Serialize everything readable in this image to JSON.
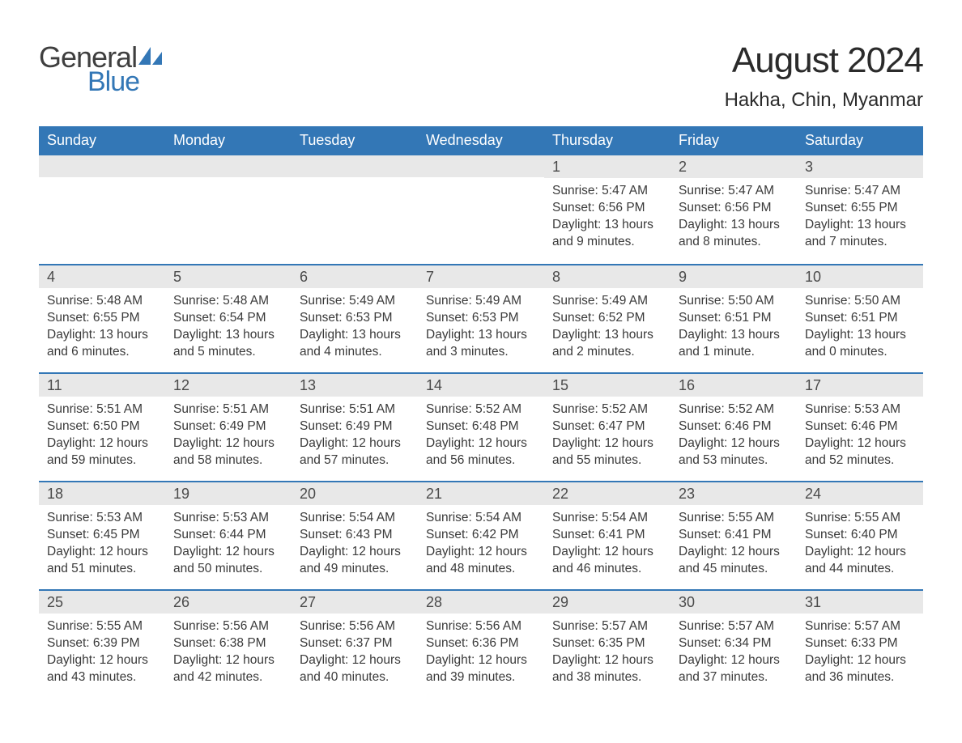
{
  "logo": {
    "text_general": "General",
    "text_blue": "Blue",
    "sail_color": "#3377b6",
    "text_general_color": "#3f3f3f",
    "text_blue_color": "#3377b6"
  },
  "header": {
    "month_title": "August 2024",
    "location": "Hakha, Chin, Myanmar"
  },
  "styling": {
    "header_bg": "#3377b6",
    "header_text": "#ffffff",
    "daynum_bg": "#e8e8e8",
    "week_border_color": "#3377b6",
    "body_text_color": "#3a3a3a",
    "page_bg": "#ffffff",
    "month_title_fontsize": 44,
    "location_fontsize": 24,
    "day_header_fontsize": 18,
    "daynum_fontsize": 18,
    "cell_fontsize": 15.5
  },
  "day_labels": [
    "Sunday",
    "Monday",
    "Tuesday",
    "Wednesday",
    "Thursday",
    "Friday",
    "Saturday"
  ],
  "weeks": [
    [
      {},
      {},
      {},
      {},
      {
        "day": "1",
        "sunrise": "Sunrise: 5:47 AM",
        "sunset": "Sunset: 6:56 PM",
        "daylight": "Daylight: 13 hours and 9 minutes."
      },
      {
        "day": "2",
        "sunrise": "Sunrise: 5:47 AM",
        "sunset": "Sunset: 6:56 PM",
        "daylight": "Daylight: 13 hours and 8 minutes."
      },
      {
        "day": "3",
        "sunrise": "Sunrise: 5:47 AM",
        "sunset": "Sunset: 6:55 PM",
        "daylight": "Daylight: 13 hours and 7 minutes."
      }
    ],
    [
      {
        "day": "4",
        "sunrise": "Sunrise: 5:48 AM",
        "sunset": "Sunset: 6:55 PM",
        "daylight": "Daylight: 13 hours and 6 minutes."
      },
      {
        "day": "5",
        "sunrise": "Sunrise: 5:48 AM",
        "sunset": "Sunset: 6:54 PM",
        "daylight": "Daylight: 13 hours and 5 minutes."
      },
      {
        "day": "6",
        "sunrise": "Sunrise: 5:49 AM",
        "sunset": "Sunset: 6:53 PM",
        "daylight": "Daylight: 13 hours and 4 minutes."
      },
      {
        "day": "7",
        "sunrise": "Sunrise: 5:49 AM",
        "sunset": "Sunset: 6:53 PM",
        "daylight": "Daylight: 13 hours and 3 minutes."
      },
      {
        "day": "8",
        "sunrise": "Sunrise: 5:49 AM",
        "sunset": "Sunset: 6:52 PM",
        "daylight": "Daylight: 13 hours and 2 minutes."
      },
      {
        "day": "9",
        "sunrise": "Sunrise: 5:50 AM",
        "sunset": "Sunset: 6:51 PM",
        "daylight": "Daylight: 13 hours and 1 minute."
      },
      {
        "day": "10",
        "sunrise": "Sunrise: 5:50 AM",
        "sunset": "Sunset: 6:51 PM",
        "daylight": "Daylight: 13 hours and 0 minutes."
      }
    ],
    [
      {
        "day": "11",
        "sunrise": "Sunrise: 5:51 AM",
        "sunset": "Sunset: 6:50 PM",
        "daylight": "Daylight: 12 hours and 59 minutes."
      },
      {
        "day": "12",
        "sunrise": "Sunrise: 5:51 AM",
        "sunset": "Sunset: 6:49 PM",
        "daylight": "Daylight: 12 hours and 58 minutes."
      },
      {
        "day": "13",
        "sunrise": "Sunrise: 5:51 AM",
        "sunset": "Sunset: 6:49 PM",
        "daylight": "Daylight: 12 hours and 57 minutes."
      },
      {
        "day": "14",
        "sunrise": "Sunrise: 5:52 AM",
        "sunset": "Sunset: 6:48 PM",
        "daylight": "Daylight: 12 hours and 56 minutes."
      },
      {
        "day": "15",
        "sunrise": "Sunrise: 5:52 AM",
        "sunset": "Sunset: 6:47 PM",
        "daylight": "Daylight: 12 hours and 55 minutes."
      },
      {
        "day": "16",
        "sunrise": "Sunrise: 5:52 AM",
        "sunset": "Sunset: 6:46 PM",
        "daylight": "Daylight: 12 hours and 53 minutes."
      },
      {
        "day": "17",
        "sunrise": "Sunrise: 5:53 AM",
        "sunset": "Sunset: 6:46 PM",
        "daylight": "Daylight: 12 hours and 52 minutes."
      }
    ],
    [
      {
        "day": "18",
        "sunrise": "Sunrise: 5:53 AM",
        "sunset": "Sunset: 6:45 PM",
        "daylight": "Daylight: 12 hours and 51 minutes."
      },
      {
        "day": "19",
        "sunrise": "Sunrise: 5:53 AM",
        "sunset": "Sunset: 6:44 PM",
        "daylight": "Daylight: 12 hours and 50 minutes."
      },
      {
        "day": "20",
        "sunrise": "Sunrise: 5:54 AM",
        "sunset": "Sunset: 6:43 PM",
        "daylight": "Daylight: 12 hours and 49 minutes."
      },
      {
        "day": "21",
        "sunrise": "Sunrise: 5:54 AM",
        "sunset": "Sunset: 6:42 PM",
        "daylight": "Daylight: 12 hours and 48 minutes."
      },
      {
        "day": "22",
        "sunrise": "Sunrise: 5:54 AM",
        "sunset": "Sunset: 6:41 PM",
        "daylight": "Daylight: 12 hours and 46 minutes."
      },
      {
        "day": "23",
        "sunrise": "Sunrise: 5:55 AM",
        "sunset": "Sunset: 6:41 PM",
        "daylight": "Daylight: 12 hours and 45 minutes."
      },
      {
        "day": "24",
        "sunrise": "Sunrise: 5:55 AM",
        "sunset": "Sunset: 6:40 PM",
        "daylight": "Daylight: 12 hours and 44 minutes."
      }
    ],
    [
      {
        "day": "25",
        "sunrise": "Sunrise: 5:55 AM",
        "sunset": "Sunset: 6:39 PM",
        "daylight": "Daylight: 12 hours and 43 minutes."
      },
      {
        "day": "26",
        "sunrise": "Sunrise: 5:56 AM",
        "sunset": "Sunset: 6:38 PM",
        "daylight": "Daylight: 12 hours and 42 minutes."
      },
      {
        "day": "27",
        "sunrise": "Sunrise: 5:56 AM",
        "sunset": "Sunset: 6:37 PM",
        "daylight": "Daylight: 12 hours and 40 minutes."
      },
      {
        "day": "28",
        "sunrise": "Sunrise: 5:56 AM",
        "sunset": "Sunset: 6:36 PM",
        "daylight": "Daylight: 12 hours and 39 minutes."
      },
      {
        "day": "29",
        "sunrise": "Sunrise: 5:57 AM",
        "sunset": "Sunset: 6:35 PM",
        "daylight": "Daylight: 12 hours and 38 minutes."
      },
      {
        "day": "30",
        "sunrise": "Sunrise: 5:57 AM",
        "sunset": "Sunset: 6:34 PM",
        "daylight": "Daylight: 12 hours and 37 minutes."
      },
      {
        "day": "31",
        "sunrise": "Sunrise: 5:57 AM",
        "sunset": "Sunset: 6:33 PM",
        "daylight": "Daylight: 12 hours and 36 minutes."
      }
    ]
  ]
}
